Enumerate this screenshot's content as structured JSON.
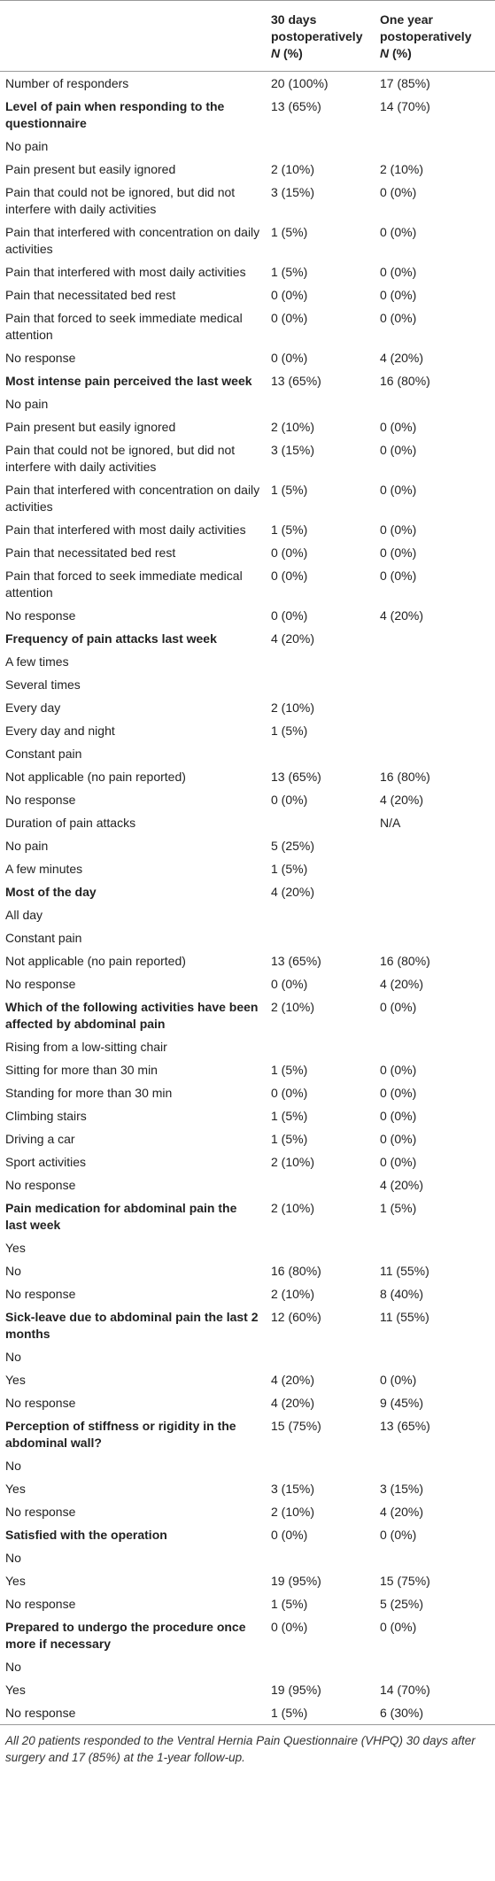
{
  "table": {
    "header": [
      {
        "title": "30 days postoperatively",
        "unit_italic": "N",
        "unit": "(%)"
      },
      {
        "title": "One year postoperatively",
        "unit_italic": "N",
        "unit": "(%)"
      }
    ],
    "rows": [
      {
        "cells": [
          "Number of responders",
          "20 (100%)",
          "17 (85%)"
        ]
      },
      {
        "cells": [
          "Level of pain when responding to the questionnaire",
          "13 (65%)",
          "14 (70%)"
        ],
        "bold": true
      },
      {
        "cells": [
          "No pain",
          null,
          null
        ]
      },
      {
        "cells": [
          "Pain present but easily ignored",
          "2 (10%)",
          "2 (10%)"
        ]
      },
      {
        "cells": [
          "Pain that could not be ignored, but did not interfere with daily activities",
          "3 (15%)",
          "0 (0%)"
        ]
      },
      {
        "cells": [
          "Pain that interfered with concentration on daily activities",
          "1 (5%)",
          "0 (0%)"
        ]
      },
      {
        "cells": [
          "Pain that interfered with most daily activities",
          "1 (5%)",
          "0 (0%)"
        ]
      },
      {
        "cells": [
          "Pain that necessitated bed rest",
          "0 (0%)",
          "0 (0%)"
        ]
      },
      {
        "cells": [
          "Pain that forced to seek immediate medical attention",
          "0 (0%)",
          "0 (0%)"
        ]
      },
      {
        "cells": [
          "No response",
          "0 (0%)",
          "4 (20%)"
        ]
      },
      {
        "cells": [
          "Most intense pain perceived the last week",
          "13 (65%)",
          "16 (80%)"
        ],
        "bold": true
      },
      {
        "cells": [
          "No pain",
          null,
          null
        ]
      },
      {
        "cells": [
          "Pain present but easily ignored",
          "2 (10%)",
          "0 (0%)"
        ]
      },
      {
        "cells": [
          "Pain that could not be ignored, but did not interfere with daily activities",
          "3 (15%)",
          "0 (0%)"
        ]
      },
      {
        "cells": [
          "Pain that interfered with concentration on daily activities",
          "1 (5%)",
          "0 (0%)"
        ]
      },
      {
        "cells": [
          "Pain that interfered with most daily activities",
          "1 (5%)",
          "0 (0%)"
        ]
      },
      {
        "cells": [
          "Pain that necessitated bed rest",
          "0 (0%)",
          "0 (0%)"
        ]
      },
      {
        "cells": [
          "Pain that forced to seek immediate medical attention",
          "0 (0%)",
          "0 (0%)"
        ]
      },
      {
        "cells": [
          "No response",
          "0 (0%)",
          "4 (20%)"
        ]
      },
      {
        "cells": [
          "Frequency of pain attacks last week",
          "4 (20%)",
          null
        ],
        "bold": true
      },
      {
        "cells": [
          "A few times",
          null,
          null
        ]
      },
      {
        "cells": [
          "Several times",
          null,
          null
        ]
      },
      {
        "cells": [
          "Every day",
          "2 (10%)",
          null
        ]
      },
      {
        "cells": [
          "Every day and night",
          "1 (5%)",
          null
        ]
      },
      {
        "cells": [
          "Constant pain",
          null,
          null
        ]
      },
      {
        "cells": [
          "Not applicable (no pain reported)",
          "13 (65%)",
          "16 (80%)"
        ]
      },
      {
        "cells": [
          "No response",
          "0 (0%)",
          "4 (20%)"
        ]
      },
      {
        "cells": [
          "Duration of pain attacks",
          null,
          "N/A"
        ]
      },
      {
        "cells": [
          "No pain",
          "5 (25%)",
          null
        ]
      },
      {
        "cells": [
          "A few minutes",
          "1 (5%)",
          null
        ]
      },
      {
        "cells": [
          "Most of the day",
          "4 (20%)",
          null
        ],
        "bold": true
      },
      {
        "cells": [
          "All day",
          null,
          null
        ]
      },
      {
        "cells": [
          "Constant pain",
          null,
          null
        ]
      },
      {
        "cells": [
          "Not applicable (no pain reported)",
          "13 (65%)",
          "16 (80%)"
        ]
      },
      {
        "cells": [
          "No response",
          "0 (0%)",
          "4 (20%)"
        ]
      },
      {
        "cells": [
          "Which of the following activities have been affected by abdominal pain",
          "2 (10%)",
          "0 (0%)"
        ],
        "bold": true
      },
      {
        "cells": [
          "Rising from a low-sitting chair",
          null,
          null
        ]
      },
      {
        "cells": [
          "Sitting for more than 30 min",
          "1 (5%)",
          "0 (0%)"
        ]
      },
      {
        "cells": [
          "Standing for more than 30 min",
          "0 (0%)",
          "0 (0%)"
        ]
      },
      {
        "cells": [
          "Climbing stairs",
          "1 (5%)",
          "0 (0%)"
        ]
      },
      {
        "cells": [
          "Driving a car",
          "1 (5%)",
          "0 (0%)"
        ]
      },
      {
        "cells": [
          "Sport activities",
          "2 (10%)",
          "0 (0%)"
        ]
      },
      {
        "cells": [
          "No response",
          null,
          "4 (20%)"
        ]
      },
      {
        "cells": [
          "Pain medication for abdominal pain the last week",
          "2 (10%)",
          "1 (5%)"
        ],
        "bold": true
      },
      {
        "cells": [
          "Yes",
          null,
          null
        ]
      },
      {
        "cells": [
          "No",
          "16 (80%)",
          "11 (55%)"
        ]
      },
      {
        "cells": [
          "No response",
          "2 (10%)",
          "8 (40%)"
        ]
      },
      {
        "cells": [
          "Sick-leave due to abdominal pain the last 2 months",
          "12 (60%)",
          "11 (55%)"
        ],
        "bold": true
      },
      {
        "cells": [
          "No",
          null,
          null
        ]
      },
      {
        "cells": [
          "Yes",
          "4 (20%)",
          "0 (0%)"
        ]
      },
      {
        "cells": [
          "No response",
          "4 (20%)",
          "9 (45%)"
        ]
      },
      {
        "cells": [
          "Perception of stiffness or rigidity in the abdominal wall?",
          "15 (75%)",
          "13 (65%)"
        ],
        "bold": true
      },
      {
        "cells": [
          "No",
          null,
          null
        ]
      },
      {
        "cells": [
          "Yes",
          "3 (15%)",
          "3 (15%)"
        ]
      },
      {
        "cells": [
          "No response",
          "2 (10%)",
          "4 (20%)"
        ]
      },
      {
        "cells": [
          "Satisfied with the operation",
          "0 (0%)",
          "0 (0%)"
        ],
        "bold": true
      },
      {
        "cells": [
          "No",
          null,
          null
        ]
      },
      {
        "cells": [
          "Yes",
          "19 (95%)",
          "15 (75%)"
        ]
      },
      {
        "cells": [
          "No response",
          "1 (5%)",
          "5 (25%)"
        ]
      },
      {
        "cells": [
          "Prepared to undergo the procedure once more if necessary",
          "0 (0%)",
          "0 (0%)"
        ],
        "bold": true
      },
      {
        "cells": [
          "No",
          null,
          null
        ]
      },
      {
        "cells": [
          "Yes",
          "19 (95%)",
          "14 (70%)"
        ]
      },
      {
        "cells": [
          "No response",
          "1 (5%)",
          "6 (30%)"
        ]
      }
    ]
  },
  "footnote": "All 20 patients responded to the Ventral Hernia Pain Questionnaire (VHPQ) 30 days after surgery and 17 (85%) at the 1-year follow-up."
}
